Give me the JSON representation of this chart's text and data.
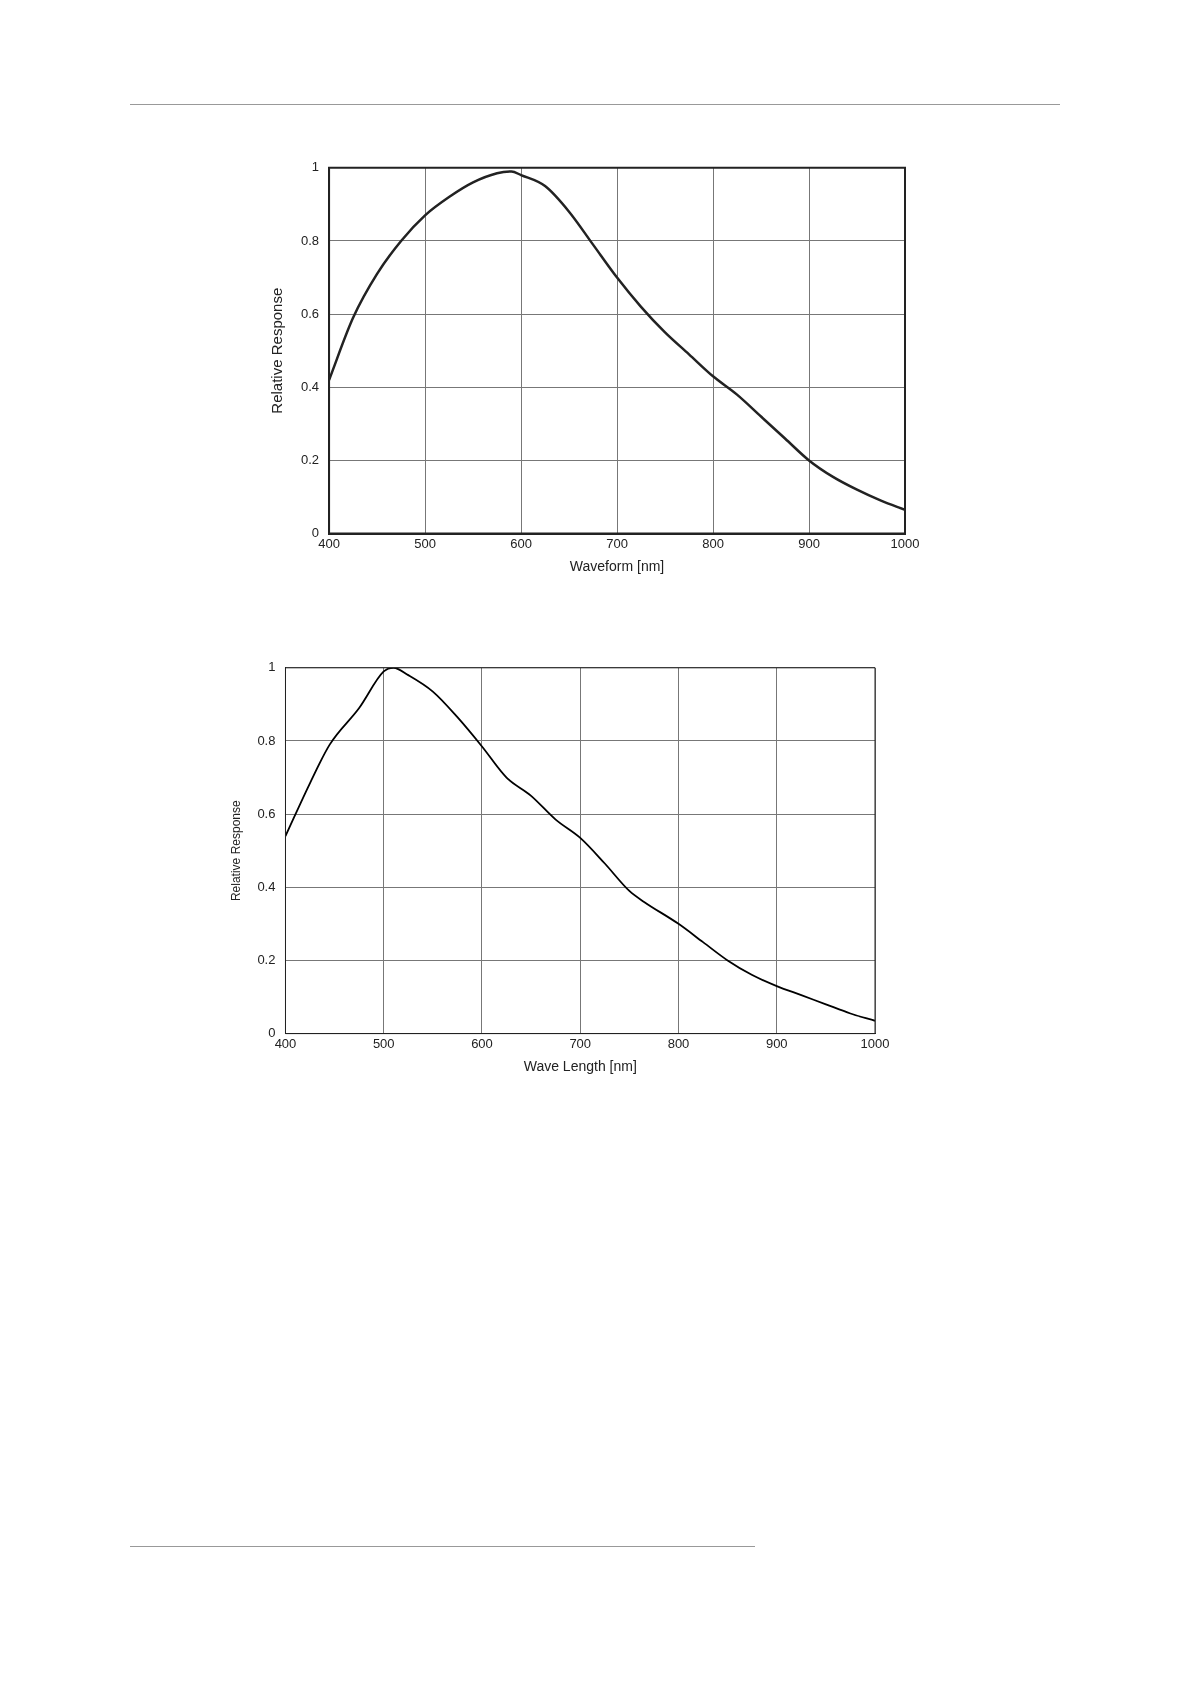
{
  "chart_data": [
    {
      "type": "line",
      "xlabel": "Waveform [nm]",
      "ylabel": "Relative Response",
      "xlim": [
        400,
        1000
      ],
      "xticks": [
        400,
        500,
        600,
        700,
        800,
        900,
        1000
      ],
      "ylim": [
        0,
        1
      ],
      "yticks": [
        0,
        0.2,
        0.4,
        0.6,
        0.8,
        1
      ],
      "grid": true,
      "legend": false,
      "marker": "none",
      "series": [
        {
          "color": "#222222",
          "x": [
            400,
            425,
            450,
            475,
            500,
            525,
            550,
            575,
            590,
            600,
            625,
            650,
            675,
            700,
            725,
            750,
            775,
            800,
            825,
            850,
            875,
            900,
            925,
            950,
            975,
            1000
          ],
          "values": [
            0.42,
            0.59,
            0.71,
            0.8,
            0.87,
            0.92,
            0.96,
            0.985,
            0.99,
            0.98,
            0.95,
            0.88,
            0.79,
            0.7,
            0.62,
            0.55,
            0.49,
            0.43,
            0.38,
            0.32,
            0.26,
            0.2,
            0.155,
            0.12,
            0.09,
            0.065
          ]
        }
      ]
    },
    {
      "type": "line",
      "xlabel": "Wave Length [nm]",
      "ylabel": "Relative Response",
      "xlim": [
        400,
        1000
      ],
      "xticks": [
        400,
        500,
        600,
        700,
        800,
        900,
        1000
      ],
      "ylim": [
        0,
        1
      ],
      "yticks": [
        0,
        0.2,
        0.4,
        0.6,
        0.8,
        1
      ],
      "grid": true,
      "legend": false,
      "marker": "none",
      "series": [
        {
          "color": "#000000",
          "x": [
            400,
            425,
            445,
            475,
            500,
            510,
            525,
            550,
            575,
            600,
            625,
            650,
            675,
            700,
            725,
            750,
            765,
            800,
            825,
            850,
            875,
            900,
            925,
            950,
            975,
            1000
          ],
          "values": [
            0.54,
            0.685,
            0.79,
            0.89,
            0.99,
            1,
            0.98,
            0.935,
            0.865,
            0.785,
            0.7,
            0.65,
            0.585,
            0.535,
            0.465,
            0.39,
            0.36,
            0.3,
            0.25,
            0.2,
            0.16,
            0.13,
            0.105,
            0.08,
            0.055,
            0.035
          ]
        }
      ]
    }
  ]
}
